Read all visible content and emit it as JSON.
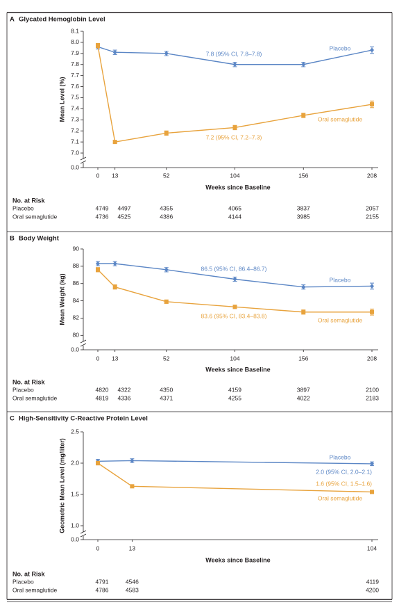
{
  "chart_data": [
    {
      "type": "line",
      "panel": "A",
      "title": "Glycated Hemoglobin Level",
      "ylabel": "Mean Level (%)",
      "xlabel": "Weeks since Baseline",
      "x": [
        0,
        13,
        52,
        104,
        156,
        208
      ],
      "xlim": [
        0,
        208
      ],
      "xticks": [
        0,
        13,
        52,
        104,
        156,
        208
      ],
      "ylim": [
        6.95,
        8.1
      ],
      "y_break": true,
      "yticks": [
        {
          "value": 0,
          "label": "0.0"
        },
        {
          "value": 7,
          "label": "7.0"
        },
        7.1,
        7.2,
        7.3,
        7.4,
        7.5,
        7.6,
        7.7,
        7.8,
        7.9,
        {
          "value": 8,
          "label": "8.0"
        },
        8.1
      ],
      "series": [
        {
          "name": "Placebo",
          "color": "#5b86c5",
          "marker": "diamond",
          "values": [
            7.96,
            7.91,
            7.9,
            7.8,
            7.8,
            7.93
          ],
          "errors": [
            0.02,
            0.02,
            0.02,
            0.02,
            0.02,
            0.03
          ]
        },
        {
          "name": "Oral semaglutide",
          "color": "#e8a33d",
          "marker": "square",
          "values": [
            7.97,
            7.1,
            7.18,
            7.23,
            7.34,
            7.44
          ],
          "errors": [
            0.02,
            0.01,
            0.02,
            0.02,
            0.02,
            0.03
          ]
        }
      ],
      "annotations": [
        "7.8 (95% CI, 7.8–7.8)",
        "7.2 (95% CI, 7.2–7.3)"
      ],
      "risk_table": {
        "title": "No. at Risk",
        "rows": [
          {
            "label": "Placebo",
            "values": [
              4749,
              4497,
              4355,
              4065,
              3837,
              2057
            ]
          },
          {
            "label": "Oral semaglutide",
            "values": [
              4736,
              4525,
              4386,
              4144,
              3985,
              2155
            ]
          }
        ]
      }
    },
    {
      "type": "line",
      "panel": "B",
      "title": "Body Weight",
      "ylabel": "Mean Weight (kg)",
      "xlabel": "Weeks since Baseline",
      "x": [
        0,
        13,
        52,
        104,
        156,
        208
      ],
      "xlim": [
        0,
        208
      ],
      "xticks": [
        0,
        13,
        52,
        104,
        156,
        208
      ],
      "ylim": [
        79.3,
        90
      ],
      "y_break": true,
      "yticks": [
        {
          "value": 0,
          "label": "0.0"
        },
        80,
        82,
        84,
        86,
        88,
        90
      ],
      "series": [
        {
          "name": "Placebo",
          "color": "#5b86c5",
          "marker": "diamond",
          "values": [
            88.3,
            88.3,
            87.6,
            86.5,
            85.6,
            85.7
          ],
          "errors": [
            0.25,
            0.25,
            0.25,
            0.25,
            0.25,
            0.35
          ]
        },
        {
          "name": "Oral semaglutide",
          "color": "#e8a33d",
          "marker": "square",
          "values": [
            87.6,
            85.6,
            83.9,
            83.3,
            82.7,
            82.7
          ],
          "errors": [
            0.25,
            0.25,
            0.2,
            0.2,
            0.25,
            0.35
          ]
        }
      ],
      "annotations": [
        "86.5 (95% CI, 86.4–86.7)",
        "83.6 (95% CI, 83.4–83.8)"
      ],
      "risk_table": {
        "title": "No. at Risk",
        "rows": [
          {
            "label": "Placebo",
            "values": [
              4820,
              4322,
              4350,
              4159,
              3897,
              2100
            ]
          },
          {
            "label": "Oral semaglutide",
            "values": [
              4819,
              4336,
              4371,
              4255,
              4022,
              2183
            ]
          }
        ]
      }
    },
    {
      "type": "line",
      "panel": "C",
      "title": "High-Sensitivity C-Reactive Protein Level",
      "ylabel": "Geometric Mean Level (mg/liter)",
      "xlabel": "Weeks since Baseline",
      "x": [
        0,
        13,
        104
      ],
      "xlim": [
        0,
        104
      ],
      "xticks": [
        0,
        13,
        104
      ],
      "ylim": [
        0.9,
        2.5
      ],
      "y_break": true,
      "yticks": [
        {
          "value": 0,
          "label": "0.0"
        },
        {
          "value": 1,
          "label": "1.0"
        },
        1.5,
        {
          "value": 2,
          "label": "2.0"
        },
        2.5
      ],
      "series": [
        {
          "name": "Placebo",
          "color": "#5b86c5",
          "marker": "diamond",
          "values": [
            2.03,
            2.04,
            1.99
          ],
          "errors": [
            0.03,
            0.03,
            0.03
          ]
        },
        {
          "name": "Oral semaglutide",
          "color": "#e8a33d",
          "marker": "square",
          "values": [
            2.0,
            1.63,
            1.54
          ],
          "errors": [
            0.03,
            0.02,
            0.02
          ]
        }
      ],
      "annotations": [
        "2.0 (95% CI, 2.0–2.1)",
        "1.6 (95% CI, 1.5–1.6)"
      ],
      "risk_table": {
        "title": "No. at Risk",
        "rows": [
          {
            "label": "Placebo",
            "values": [
              4791,
              4546,
              4119
            ]
          },
          {
            "label": "Oral semaglutide",
            "values": [
              4786,
              4583,
              4200
            ]
          }
        ]
      }
    }
  ]
}
